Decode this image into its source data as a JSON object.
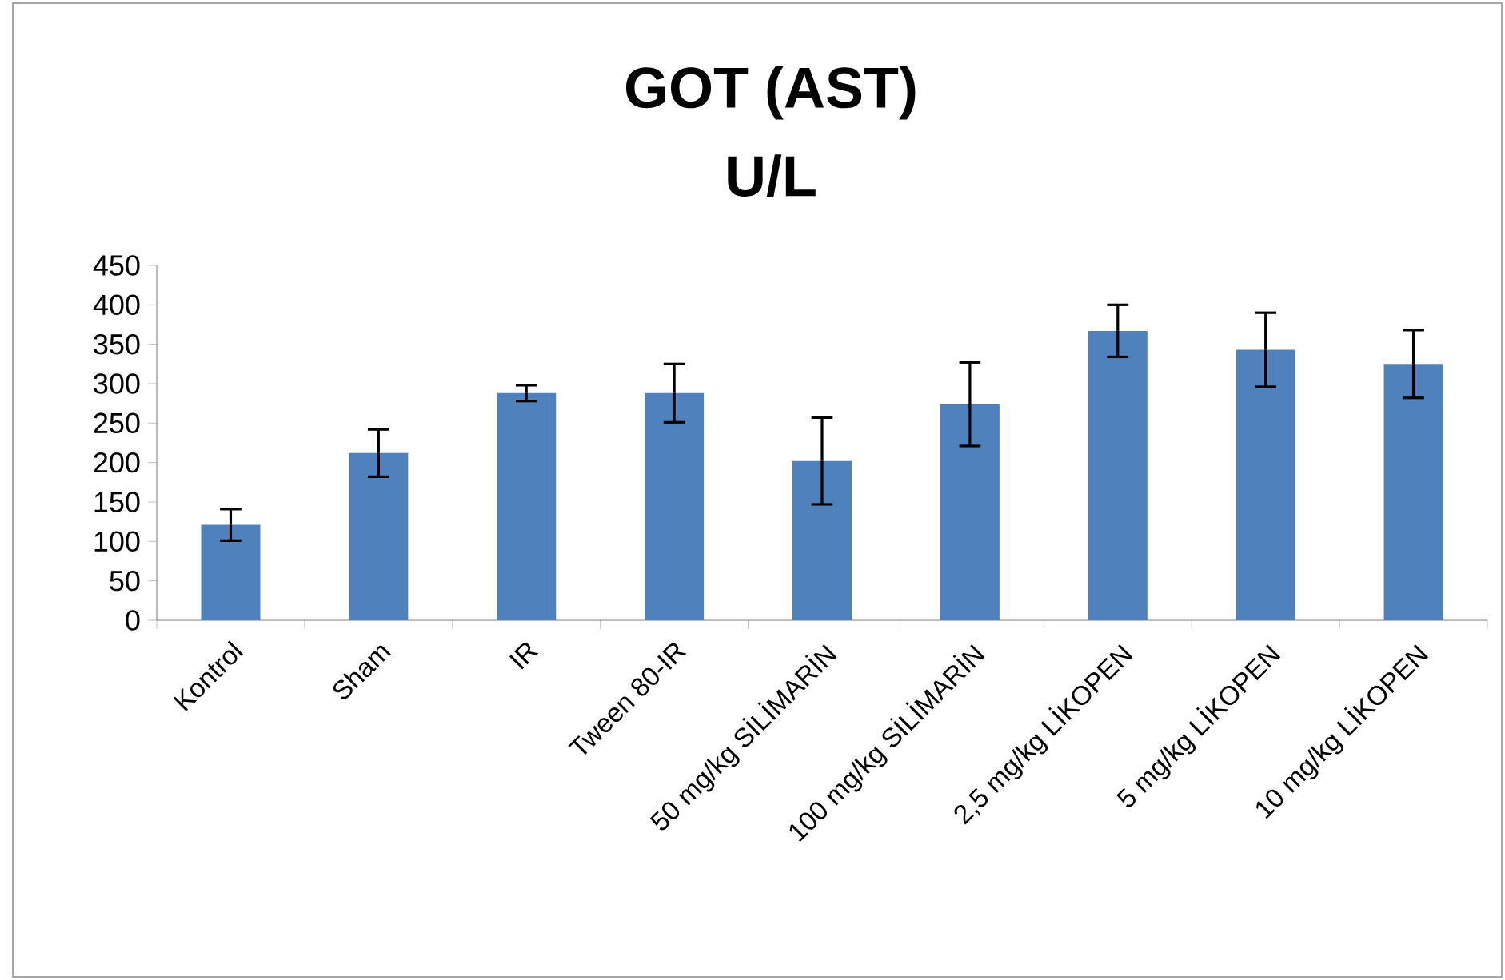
{
  "chart_data": {
    "type": "bar",
    "title": "GOT (AST)",
    "subtitle": "U/L",
    "categories": [
      "Kontrol",
      "Sham",
      "IR",
      "Tween 80-IR",
      "50 mg/kg SİLİMARİN",
      "100 mg/kg SİLİMARİN",
      "2,5 mg/kg LİKOPEN",
      "5 mg/kg LİKOPEN",
      "10 mg/kg LİKOPEN"
    ],
    "values": [
      121,
      212,
      288,
      288,
      202,
      274,
      367,
      343,
      325
    ],
    "errors": [
      20,
      30,
      10,
      37,
      55,
      53,
      33,
      47,
      43
    ],
    "color": "#4f81bd",
    "ylim": [
      0,
      450
    ],
    "yticks": [
      0,
      50,
      100,
      150,
      200,
      250,
      300,
      350,
      400,
      450
    ]
  }
}
